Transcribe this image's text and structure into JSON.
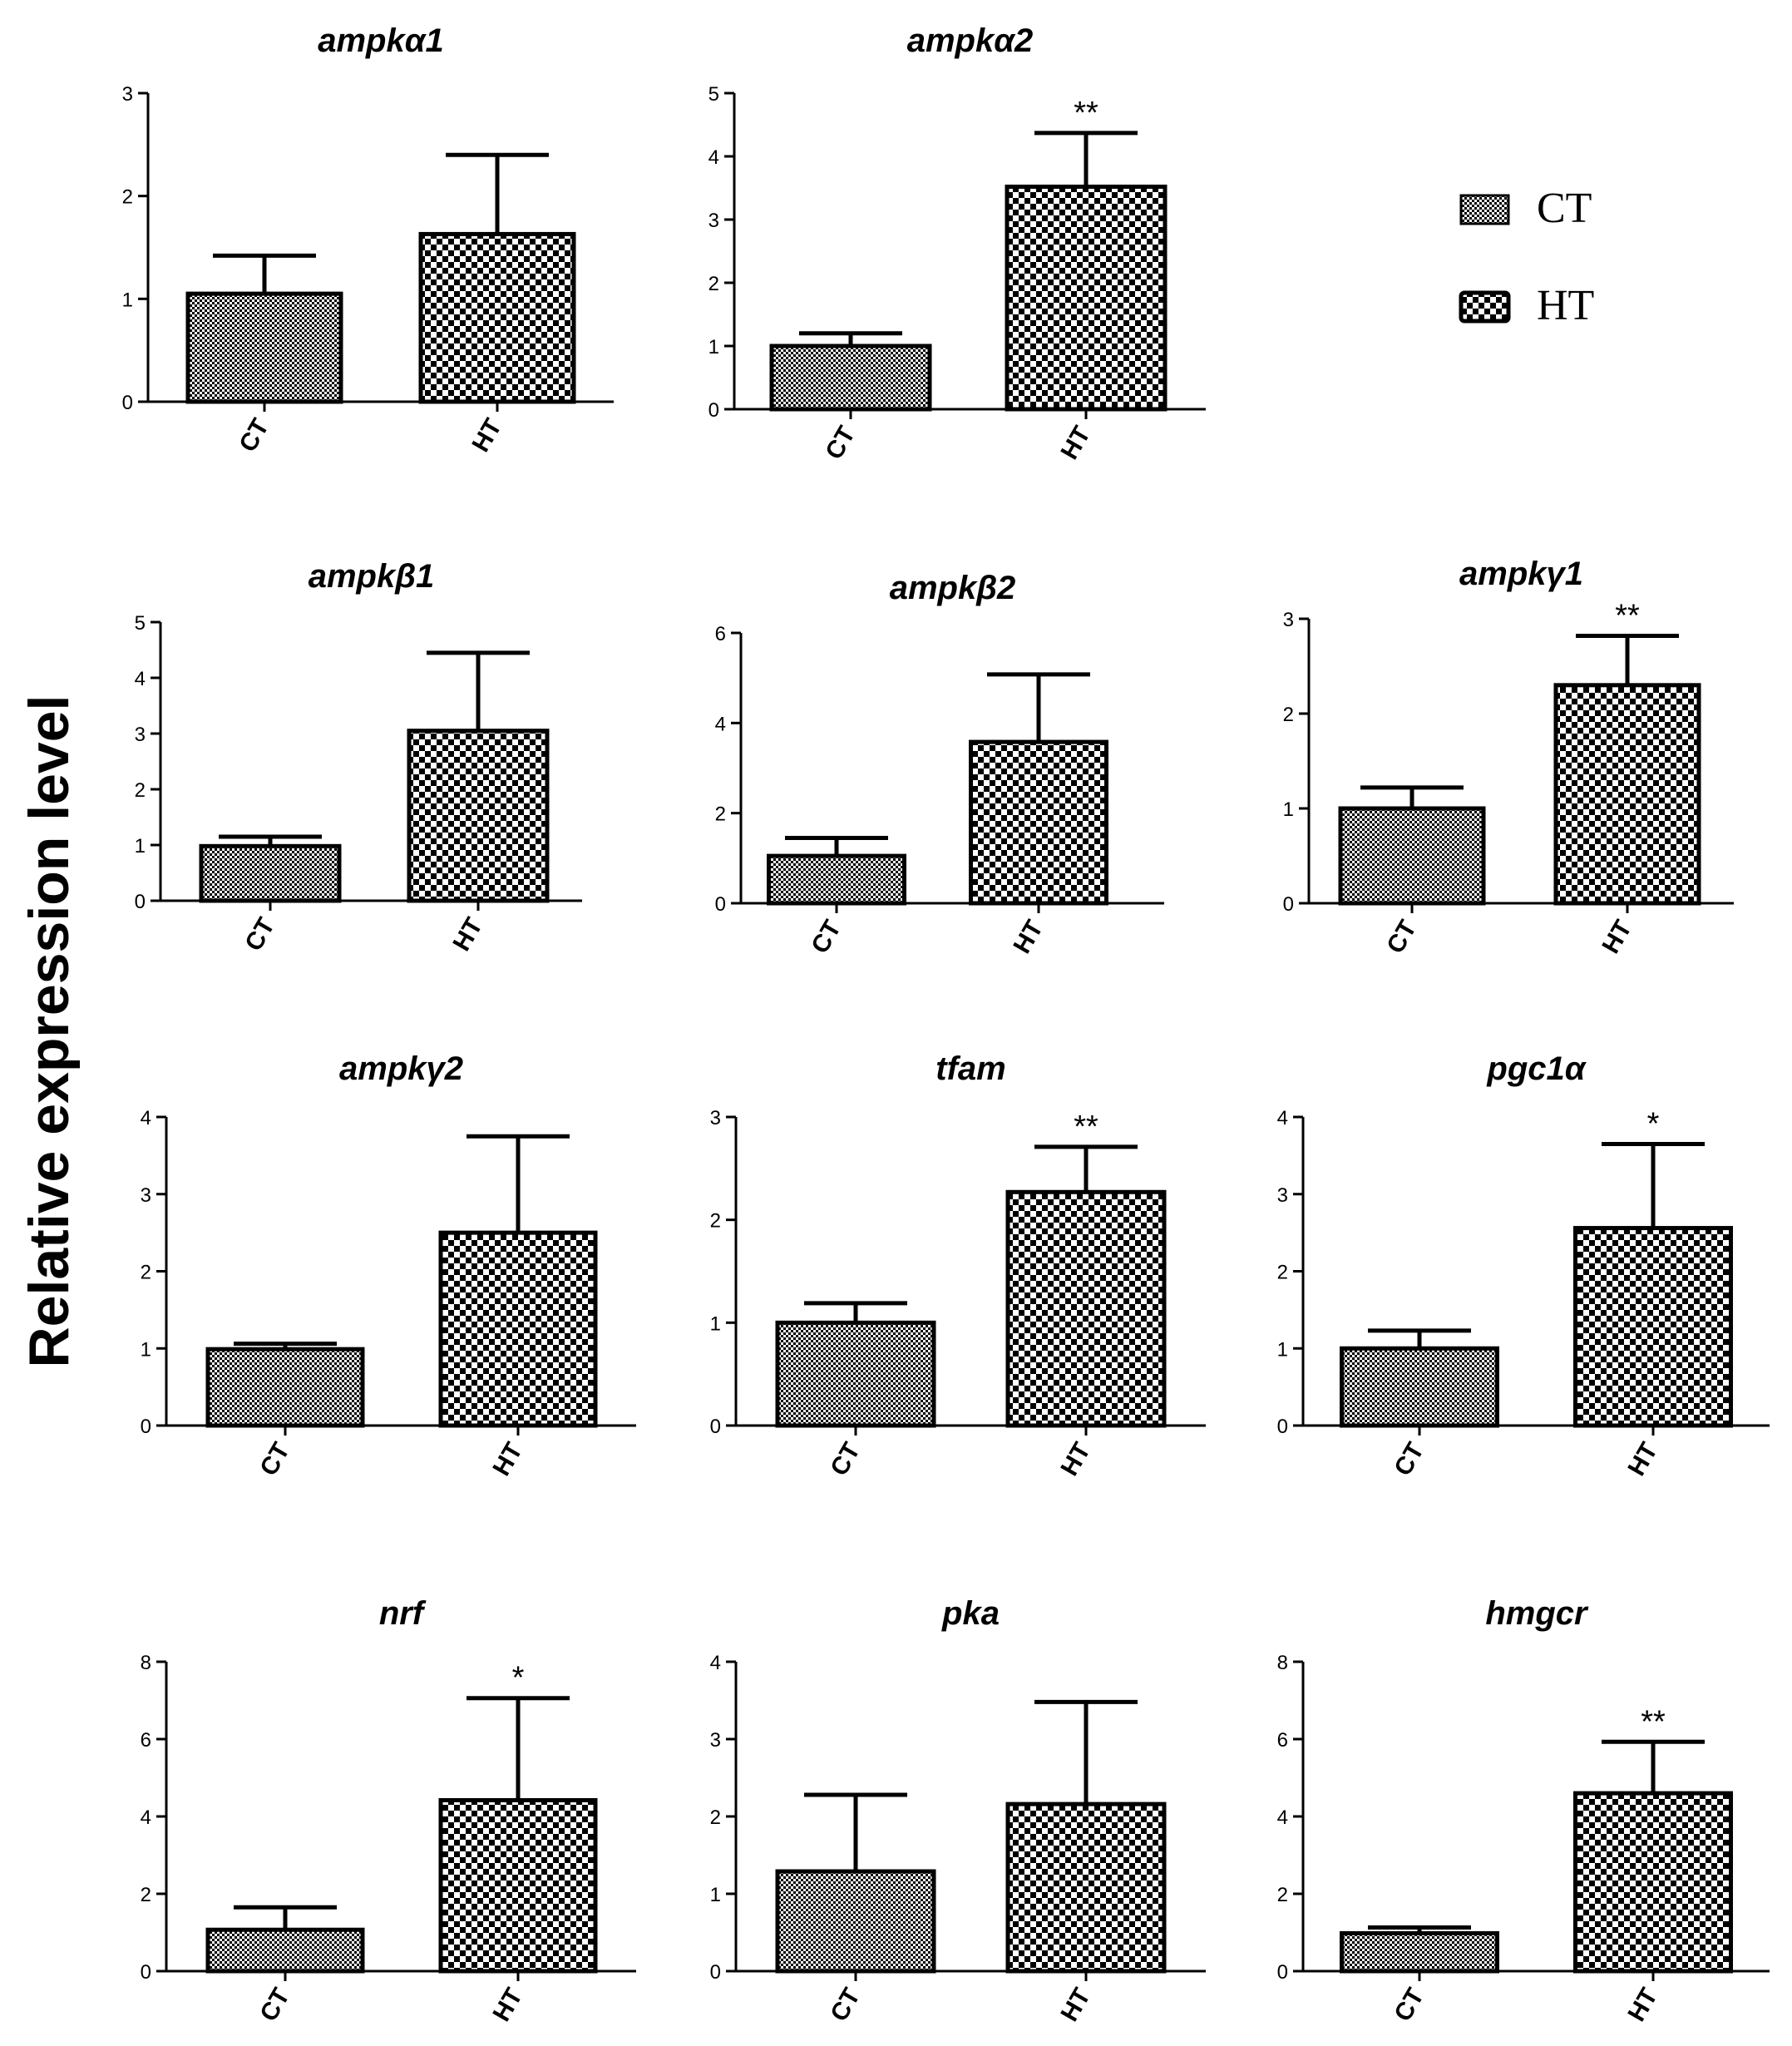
{
  "figure": {
    "ylabel": "Relative expression level",
    "legend": {
      "position": "top-right",
      "entries": [
        {
          "label": "CT",
          "pattern": "fine-checker"
        },
        {
          "label": "HT",
          "pattern": "coarse-checker"
        }
      ]
    },
    "colors": {
      "fill_dark": "#000000",
      "fill_light": "#ffffff",
      "axis": "#000000"
    }
  },
  "chart_data": [
    {
      "type": "bar",
      "title": "ampkα1",
      "categories": [
        "CT",
        "HT"
      ],
      "values": [
        1.05,
        1.63
      ],
      "error": [
        0.37,
        0.77
      ],
      "significance": [
        "",
        ""
      ],
      "ylim": [
        0,
        3
      ],
      "yticks": [
        0,
        1,
        2,
        3
      ]
    },
    {
      "type": "bar",
      "title": "ampkα2",
      "categories": [
        "CT",
        "HT"
      ],
      "values": [
        1.0,
        3.52
      ],
      "error": [
        0.2,
        0.85
      ],
      "significance": [
        "",
        "**"
      ],
      "ylim": [
        0,
        5
      ],
      "yticks": [
        0,
        1,
        2,
        3,
        4,
        5
      ]
    },
    {
      "type": "bar",
      "title": "ampkβ1",
      "categories": [
        "CT",
        "HT"
      ],
      "values": [
        0.98,
        3.05
      ],
      "error": [
        0.17,
        1.4
      ],
      "significance": [
        "",
        ""
      ],
      "ylim": [
        0,
        5
      ],
      "yticks": [
        0,
        1,
        2,
        3,
        4,
        5
      ]
    },
    {
      "type": "bar",
      "title": "ampkβ2",
      "categories": [
        "CT",
        "HT"
      ],
      "values": [
        1.05,
        3.58
      ],
      "error": [
        0.4,
        1.5
      ],
      "significance": [
        "",
        ""
      ],
      "ylim": [
        0,
        6
      ],
      "yticks": [
        0,
        2,
        4,
        6
      ]
    },
    {
      "type": "bar",
      "title": "ampkγ1",
      "categories": [
        "CT",
        "HT"
      ],
      "values": [
        1.0,
        2.3
      ],
      "error": [
        0.22,
        0.52
      ],
      "significance": [
        "",
        "**"
      ],
      "ylim": [
        0,
        3
      ],
      "yticks": [
        0,
        1,
        2,
        3
      ]
    },
    {
      "type": "bar",
      "title": "ampkγ2",
      "categories": [
        "CT",
        "HT"
      ],
      "values": [
        0.99,
        2.5
      ],
      "error": [
        0.07,
        1.25
      ],
      "significance": [
        "",
        ""
      ],
      "ylim": [
        0,
        4
      ],
      "yticks": [
        0,
        1,
        2,
        3,
        4
      ]
    },
    {
      "type": "bar",
      "title": "tfam",
      "categories": [
        "CT",
        "HT"
      ],
      "values": [
        1.0,
        2.27
      ],
      "error": [
        0.19,
        0.44
      ],
      "significance": [
        "",
        "**"
      ],
      "ylim": [
        0,
        3
      ],
      "yticks": [
        0,
        1,
        2,
        3
      ]
    },
    {
      "type": "bar",
      "title": "pgc1α",
      "categories": [
        "CT",
        "HT"
      ],
      "values": [
        1.0,
        2.56
      ],
      "error": [
        0.23,
        1.09
      ],
      "significance": [
        "",
        "*"
      ],
      "ylim": [
        0,
        4
      ],
      "yticks": [
        0,
        1,
        2,
        3,
        4
      ]
    },
    {
      "type": "bar",
      "title": "nrf",
      "categories": [
        "CT",
        "HT"
      ],
      "values": [
        1.07,
        4.42
      ],
      "error": [
        0.58,
        2.64
      ],
      "significance": [
        "",
        "*"
      ],
      "ylim": [
        0,
        8
      ],
      "yticks": [
        0,
        2,
        4,
        6,
        8
      ]
    },
    {
      "type": "bar",
      "title": "pka",
      "categories": [
        "CT",
        "HT"
      ],
      "values": [
        1.29,
        2.16
      ],
      "error": [
        0.99,
        1.32
      ],
      "significance": [
        "",
        ""
      ],
      "ylim": [
        0,
        4
      ],
      "yticks": [
        0,
        1,
        2,
        3,
        4
      ]
    },
    {
      "type": "bar",
      "title": "hmgcr",
      "categories": [
        "CT",
        "HT"
      ],
      "values": [
        0.98,
        4.6
      ],
      "error": [
        0.15,
        1.33
      ],
      "significance": [
        "",
        "**"
      ],
      "ylim": [
        0,
        8
      ],
      "yticks": [
        0,
        2,
        4,
        6,
        8
      ]
    }
  ]
}
